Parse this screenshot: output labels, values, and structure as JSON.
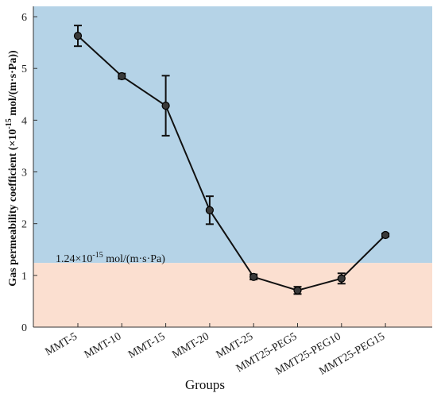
{
  "chart_data": {
    "type": "line",
    "categories": [
      "MMT-5",
      "MMT-10",
      "MMT-15",
      "MMT-20",
      "MMT-25",
      "MMT25-PEG5",
      "MMT25-PEG10",
      "MMT25-PEG15"
    ],
    "values": [
      5.63,
      4.85,
      4.28,
      2.26,
      0.97,
      0.71,
      0.94,
      1.78
    ],
    "errors": [
      0.2,
      0.05,
      0.58,
      0.27,
      0.05,
      0.07,
      0.1,
      0.03
    ],
    "xlabel": "Groups",
    "ylabel": {
      "prefix": "Gas permeability coefficient (×10",
      "exponent": "-15",
      "suffix": " mol/(m·s·Pa))"
    },
    "ylim": [
      0,
      6.2
    ],
    "yticks": [
      0,
      1,
      2,
      3,
      4,
      5,
      6
    ],
    "threshold": {
      "value": 1.24,
      "label_prefix": "1.24×10",
      "label_exponent": "-15",
      "label_suffix": " mol/(m·s·Pa)"
    },
    "colors": {
      "above": "#b5d3e7",
      "below": "#fbdfd0",
      "line": "#111111"
    },
    "grid": false
  }
}
